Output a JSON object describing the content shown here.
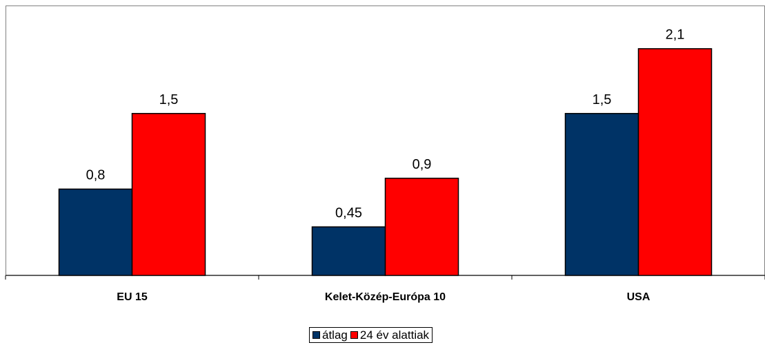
{
  "chart_data": {
    "type": "bar",
    "title": "",
    "xlabel": "",
    "ylabel": "",
    "categories": [
      "EU 15",
      "Kelet-Közép-Európa 10",
      "USA"
    ],
    "series": [
      {
        "name": "átlag",
        "color": "#003366",
        "values": [
          0.8,
          0.45,
          1.5
        ],
        "labels": [
          "0,8",
          "0,45",
          "1,5"
        ]
      },
      {
        "name": "24 év alattiak",
        "color": "#ff0000",
        "values": [
          1.5,
          0.9,
          2.1
        ],
        "labels": [
          "1,5",
          "0,9",
          "2,1"
        ]
      }
    ],
    "ylim": [
      0,
      2.5
    ],
    "grid": false,
    "legend_position": "bottom"
  }
}
